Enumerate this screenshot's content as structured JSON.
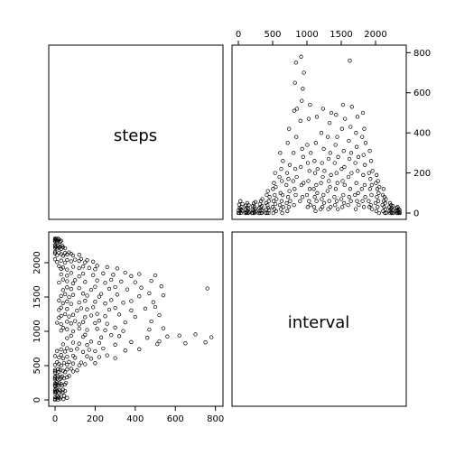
{
  "chart_data": {
    "type": "scatter",
    "title": "",
    "variables": [
      "steps",
      "interval"
    ],
    "panels": [
      {
        "id": "steps-vs-interval",
        "x_var": "interval",
        "y_var": "steps",
        "xlim": [
          0,
          2355
        ],
        "ylim": [
          0,
          806
        ],
        "x_ticks": [
          0,
          500,
          1000,
          1500,
          2000
        ],
        "y_ticks": [
          0,
          200,
          400,
          600,
          800
        ],
        "points": [
          [
            0,
            0
          ],
          [
            5,
            15
          ],
          [
            10,
            42
          ],
          [
            15,
            0
          ],
          [
            20,
            25
          ],
          [
            25,
            8
          ],
          [
            30,
            60
          ],
          [
            35,
            18
          ],
          [
            40,
            0
          ],
          [
            45,
            30
          ],
          [
            55,
            12
          ],
          [
            60,
            45
          ],
          [
            100,
            0
          ],
          [
            105,
            20
          ],
          [
            110,
            38
          ],
          [
            115,
            5
          ],
          [
            120,
            0
          ],
          [
            125,
            28
          ],
          [
            130,
            50
          ],
          [
            135,
            10
          ],
          [
            140,
            0
          ],
          [
            145,
            22
          ],
          [
            150,
            40
          ],
          [
            155,
            3
          ],
          [
            200,
            0
          ],
          [
            205,
            18
          ],
          [
            210,
            35
          ],
          [
            215,
            0
          ],
          [
            220,
            12
          ],
          [
            225,
            48
          ],
          [
            230,
            5
          ],
          [
            235,
            30
          ],
          [
            240,
            0
          ],
          [
            245,
            20
          ],
          [
            250,
            55
          ],
          [
            255,
            8
          ],
          [
            300,
            0
          ],
          [
            305,
            25
          ],
          [
            310,
            10
          ],
          [
            315,
            45
          ],
          [
            320,
            0
          ],
          [
            325,
            30
          ],
          [
            330,
            60
          ],
          [
            335,
            15
          ],
          [
            340,
            0
          ],
          [
            345,
            35
          ],
          [
            350,
            70
          ],
          [
            355,
            12
          ],
          [
            400,
            0
          ],
          [
            405,
            50
          ],
          [
            410,
            20
          ],
          [
            415,
            90
          ],
          [
            420,
            0
          ],
          [
            425,
            40
          ],
          [
            430,
            110
          ],
          [
            435,
            25
          ],
          [
            440,
            0
          ],
          [
            445,
            60
          ],
          [
            450,
            15
          ],
          [
            455,
            80
          ],
          [
            500,
            30
          ],
          [
            505,
            120
          ],
          [
            510,
            0
          ],
          [
            515,
            60
          ],
          [
            520,
            150
          ],
          [
            525,
            20
          ],
          [
            530,
            90
          ],
          [
            535,
            200
          ],
          [
            540,
            45
          ],
          [
            545,
            130
          ],
          [
            550,
            10
          ],
          [
            555,
            70
          ],
          [
            600,
            180
          ],
          [
            605,
            40
          ],
          [
            610,
            300
          ],
          [
            615,
            100
          ],
          [
            620,
            20
          ],
          [
            625,
            220
          ],
          [
            630,
            60
          ],
          [
            635,
            160
          ],
          [
            640,
            0
          ],
          [
            645,
            90
          ],
          [
            650,
            260
          ],
          [
            655,
            30
          ],
          [
            700,
            140
          ],
          [
            705,
            50
          ],
          [
            710,
            200
          ],
          [
            715,
            10
          ],
          [
            720,
            350
          ],
          [
            725,
            80
          ],
          [
            730,
            170
          ],
          [
            735,
            30
          ],
          [
            740,
            420
          ],
          [
            745,
            110
          ],
          [
            750,
            240
          ],
          [
            755,
            60
          ],
          [
            800,
            160
          ],
          [
            805,
            300
          ],
          [
            810,
            40
          ],
          [
            815,
            510
          ],
          [
            820,
            120
          ],
          [
            825,
            650
          ],
          [
            830,
            220
          ],
          [
            835,
            90
          ],
          [
            840,
            750
          ],
          [
            845,
            380
          ],
          [
            850,
            180
          ],
          [
            855,
            520
          ],
          [
            900,
            60
          ],
          [
            905,
            460
          ],
          [
            910,
            230
          ],
          [
            915,
            780
          ],
          [
            920,
            140
          ],
          [
            925,
            560
          ],
          [
            930,
            320
          ],
          [
            935,
            80
          ],
          [
            940,
            620
          ],
          [
            945,
            280
          ],
          [
            950,
            150
          ],
          [
            955,
            700
          ],
          [
            1000,
            90
          ],
          [
            1005,
            340
          ],
          [
            1010,
            30
          ],
          [
            1015,
            250
          ],
          [
            1020,
            160
          ],
          [
            1025,
            470
          ],
          [
            1030,
            60
          ],
          [
            1035,
            210
          ],
          [
            1040,
            120
          ],
          [
            1045,
            540
          ],
          [
            1050,
            40
          ],
          [
            1055,
            300
          ],
          [
            1100,
            120
          ],
          [
            1105,
            30
          ],
          [
            1110,
            260
          ],
          [
            1115,
            80
          ],
          [
            1120,
            200
          ],
          [
            1125,
            10
          ],
          [
            1130,
            350
          ],
          [
            1135,
            140
          ],
          [
            1140,
            60
          ],
          [
            1145,
            480
          ],
          [
            1150,
            100
          ],
          [
            1155,
            220
          ],
          [
            1200,
            20
          ],
          [
            1205,
            150
          ],
          [
            1210,
            400
          ],
          [
            1215,
            70
          ],
          [
            1220,
            250
          ],
          [
            1225,
            30
          ],
          [
            1230,
            180
          ],
          [
            1235,
            520
          ],
          [
            1240,
            90
          ],
          [
            1245,
            320
          ],
          [
            1250,
            50
          ],
          [
            1255,
            210
          ],
          [
            1300,
            110
          ],
          [
            1305,
            380
          ],
          [
            1310,
            20
          ],
          [
            1315,
            270
          ],
          [
            1320,
            160
          ],
          [
            1325,
            60
          ],
          [
            1330,
            450
          ],
          [
            1335,
            130
          ],
          [
            1340,
            300
          ],
          [
            1345,
            30
          ],
          [
            1350,
            190
          ],
          [
            1355,
            500
          ],
          [
            1400,
            80
          ],
          [
            1405,
            250
          ],
          [
            1410,
            40
          ],
          [
            1415,
            340
          ],
          [
            1420,
            120
          ],
          [
            1425,
            490
          ],
          [
            1430,
            200
          ],
          [
            1435,
            60
          ],
          [
            1440,
            380
          ],
          [
            1445,
            150
          ],
          [
            1450,
            20
          ],
          [
            1455,
            280
          ],
          [
            1500,
            70
          ],
          [
            1505,
            220
          ],
          [
            1510,
            420
          ],
          [
            1515,
            30
          ],
          [
            1520,
            160
          ],
          [
            1525,
            540
          ],
          [
            1530,
            90
          ],
          [
            1535,
            310
          ],
          [
            1540,
            50
          ],
          [
            1545,
            230
          ],
          [
            1550,
            140
          ],
          [
            1555,
            470
          ],
          [
            1600,
            40
          ],
          [
            1605,
            180
          ],
          [
            1610,
            360
          ],
          [
            1615,
            80
          ],
          [
            1620,
            270
          ],
          [
            1625,
            760
          ],
          [
            1630,
            120
          ],
          [
            1635,
            430
          ],
          [
            1640,
            60
          ],
          [
            1645,
            300
          ],
          [
            1650,
            200
          ],
          [
            1655,
            530
          ],
          [
            1700,
            90
          ],
          [
            1705,
            250
          ],
          [
            1710,
            20
          ],
          [
            1715,
            400
          ],
          [
            1720,
            150
          ],
          [
            1725,
            330
          ],
          [
            1730,
            60
          ],
          [
            1735,
            480
          ],
          [
            1740,
            210
          ],
          [
            1745,
            100
          ],
          [
            1750,
            280
          ],
          [
            1755,
            40
          ],
          [
            1800,
            120
          ],
          [
            1805,
            380
          ],
          [
            1810,
            60
          ],
          [
            1815,
            500
          ],
          [
            1820,
            190
          ],
          [
            1825,
            290
          ],
          [
            1830,
            30
          ],
          [
            1835,
            420
          ],
          [
            1840,
            140
          ],
          [
            1845,
            240
          ],
          [
            1850,
            80
          ],
          [
            1855,
            350
          ],
          [
            1900,
            60
          ],
          [
            1905,
            200
          ],
          [
            1910,
            30
          ],
          [
            1915,
            310
          ],
          [
            1920,
            120
          ],
          [
            1925,
            170
          ],
          [
            1930,
            40
          ],
          [
            1935,
            260
          ],
          [
            1940,
            90
          ],
          [
            1945,
            140
          ],
          [
            1950,
            20
          ],
          [
            1955,
            210
          ],
          [
            2000,
            50
          ],
          [
            2005,
            150
          ],
          [
            2010,
            10
          ],
          [
            2015,
            190
          ],
          [
            2020,
            80
          ],
          [
            2025,
            120
          ],
          [
            2030,
            30
          ],
          [
            2035,
            160
          ],
          [
            2040,
            60
          ],
          [
            2045,
            100
          ],
          [
            2050,
            0
          ],
          [
            2055,
            130
          ],
          [
            2100,
            40
          ],
          [
            2105,
            90
          ],
          [
            2110,
            10
          ],
          [
            2115,
            120
          ],
          [
            2120,
            60
          ],
          [
            2125,
            30
          ],
          [
            2130,
            80
          ],
          [
            2135,
            0
          ],
          [
            2140,
            50
          ],
          [
            2145,
            20
          ],
          [
            2150,
            70
          ],
          [
            2155,
            0
          ],
          [
            2200,
            30
          ],
          [
            2205,
            10
          ],
          [
            2210,
            50
          ],
          [
            2215,
            0
          ],
          [
            2220,
            20
          ],
          [
            2225,
            40
          ],
          [
            2230,
            5
          ],
          [
            2235,
            25
          ],
          [
            2240,
            0
          ],
          [
            2245,
            15
          ],
          [
            2250,
            35
          ],
          [
            2255,
            0
          ],
          [
            2300,
            10
          ],
          [
            2305,
            25
          ],
          [
            2310,
            0
          ],
          [
            2315,
            15
          ],
          [
            2320,
            30
          ],
          [
            2325,
            0
          ],
          [
            2330,
            10
          ],
          [
            2335,
            20
          ],
          [
            2340,
            0
          ],
          [
            2345,
            5
          ],
          [
            2350,
            15
          ],
          [
            2355,
            0
          ]
        ]
      },
      {
        "id": "interval-vs-steps",
        "x_var": "steps",
        "y_var": "interval",
        "xlim": [
          0,
          806
        ],
        "ylim": [
          0,
          2355
        ],
        "x_ticks": [
          0,
          200,
          400,
          600,
          800
        ],
        "y_ticks": [
          0,
          500,
          1000,
          1500,
          2000
        ],
        "points": "transpose-of-steps-vs-interval"
      }
    ],
    "grid": false,
    "legend": "none"
  }
}
